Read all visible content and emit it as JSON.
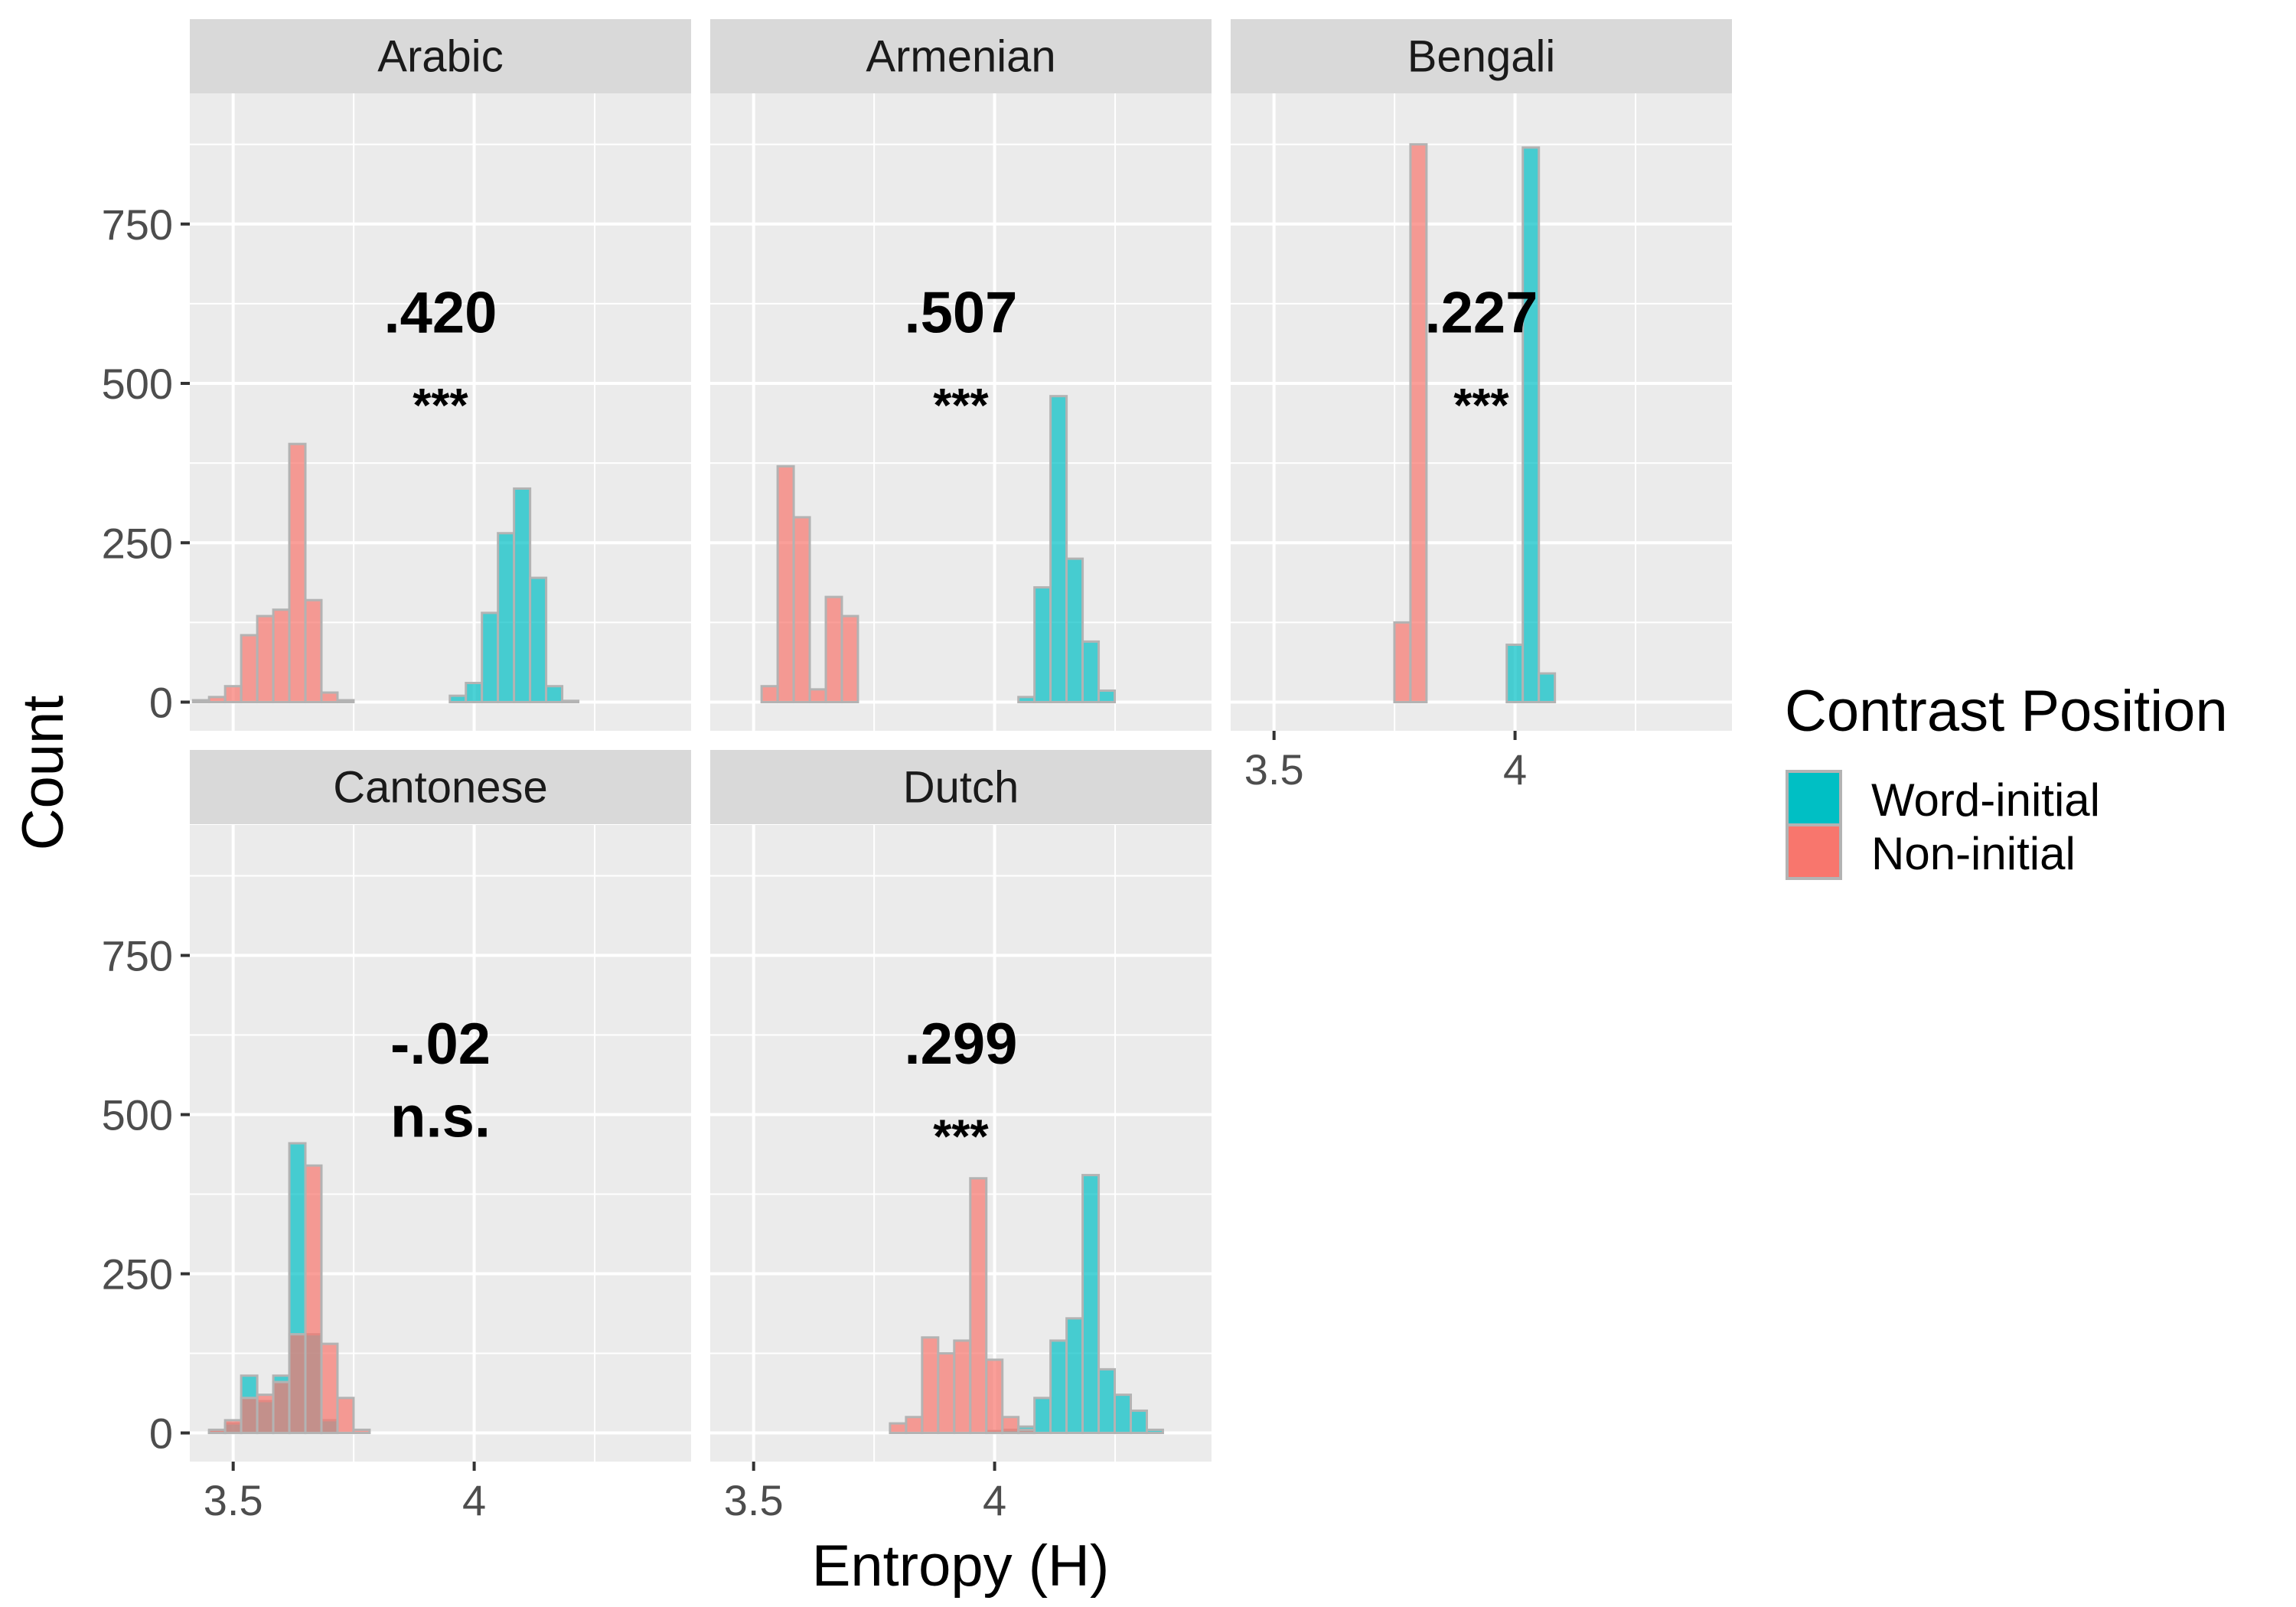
{
  "chart_data": {
    "type": "histogram",
    "facet_type": "facet_wrap",
    "xlabel": "Entropy (H)",
    "ylabel": "Count",
    "xlim": [
      3.41,
      4.45
    ],
    "ylim": [
      -45,
      955
    ],
    "x_ticks": [
      3.5,
      4
    ],
    "x_tick_labels": [
      "3.5",
      "4"
    ],
    "y_ticks": [
      0,
      250,
      500,
      750
    ],
    "y_tick_labels": [
      "0",
      "250",
      "500",
      "750"
    ],
    "minor_x": [
      3.75,
      4.25
    ],
    "minor_y": [
      125,
      375,
      625,
      875
    ],
    "bin_width": 0.0333,
    "bin_start": 3.4167,
    "n_bins": 28,
    "grid": true,
    "legend": {
      "title": "Contrast Position",
      "placement": "right",
      "entries": [
        {
          "label": "Word-initial",
          "color": "#00BFC4"
        },
        {
          "label": "Non-initial",
          "color": "#F8766D"
        }
      ]
    },
    "colors": {
      "word_initial": "#00BFC4",
      "non_initial": "#F8766D",
      "bar_outline": "#b3b3b3",
      "panel_bg": "#ebebeb",
      "strip_bg": "#d9d9d9",
      "grid": "#ffffff"
    },
    "panels": [
      {
        "strip": "Arabic",
        "annotation": ".420",
        "significance": "***",
        "series": [
          {
            "name": "Word-initial",
            "values": [
              0,
              0,
              0,
              0,
              0,
              0,
              0,
              0,
              0,
              0,
              0,
              0,
              0,
              0,
              0,
              0,
              10,
              30,
              140,
              265,
              335,
              195,
              25,
              2,
              0,
              0,
              0,
              0
            ]
          },
          {
            "name": "Non-initial",
            "values": [
              3,
              8,
              25,
              105,
              135,
              145,
              405,
              160,
              15,
              3,
              0,
              0,
              0,
              0,
              0,
              0,
              0,
              0,
              0,
              0,
              0,
              0,
              0,
              0,
              0,
              0,
              0,
              0
            ]
          }
        ]
      },
      {
        "strip": "Armenian",
        "annotation": ".507",
        "significance": "***",
        "series": [
          {
            "name": "Word-initial",
            "values": [
              0,
              0,
              0,
              0,
              0,
              0,
              0,
              0,
              0,
              0,
              0,
              0,
              0,
              0,
              0,
              0,
              0,
              0,
              0,
              8,
              180,
              480,
              225,
              95,
              18,
              0,
              0,
              0
            ]
          },
          {
            "name": "Non-initial",
            "values": [
              0,
              0,
              0,
              25,
              370,
              290,
              20,
              165,
              135,
              0,
              0,
              0,
              0,
              0,
              0,
              0,
              0,
              0,
              0,
              0,
              0,
              0,
              0,
              0,
              0,
              0,
              0,
              0
            ]
          }
        ]
      },
      {
        "strip": "Bengali",
        "annotation": ".227",
        "significance": "***",
        "series": [
          {
            "name": "Word-initial",
            "values": [
              0,
              0,
              0,
              0,
              0,
              0,
              0,
              0,
              0,
              0,
              0,
              0,
              0,
              0,
              0,
              0,
              0,
              90,
              870,
              45,
              0,
              0,
              0,
              0,
              0,
              0,
              0,
              0
            ]
          },
          {
            "name": "Non-initial",
            "values": [
              0,
              0,
              0,
              0,
              0,
              0,
              0,
              0,
              0,
              0,
              125,
              875,
              0,
              0,
              0,
              0,
              0,
              0,
              0,
              0,
              0,
              0,
              0,
              0,
              0,
              0,
              0,
              0
            ]
          }
        ]
      },
      {
        "strip": "Cantonese",
        "annotation": "-.02",
        "significance": "n.s.",
        "series": [
          {
            "name": "Word-initial",
            "values": [
              0,
              3,
              15,
              90,
              50,
              90,
              455,
              155,
              20,
              0,
              0,
              0,
              0,
              0,
              0,
              0,
              0,
              0,
              0,
              0,
              0,
              0,
              0,
              0,
              0,
              0,
              0,
              0
            ]
          },
          {
            "name": "Non-initial",
            "values": [
              0,
              5,
              20,
              55,
              60,
              80,
              155,
              420,
              140,
              55,
              5,
              0,
              0,
              0,
              0,
              0,
              0,
              0,
              0,
              0,
              0,
              0,
              0,
              0,
              0,
              0,
              0,
              0
            ]
          }
        ]
      },
      {
        "strip": "Dutch",
        "annotation": ".299",
        "significance": "***",
        "series": [
          {
            "name": "Word-initial",
            "values": [
              0,
              0,
              0,
              0,
              0,
              0,
              0,
              0,
              0,
              0,
              0,
              0,
              0,
              0,
              0,
              0,
              0,
              3,
              5,
              10,
              55,
              145,
              180,
              405,
              100,
              60,
              35,
              5
            ]
          },
          {
            "name": "Non-initial",
            "values": [
              0,
              0,
              0,
              0,
              0,
              0,
              0,
              0,
              0,
              0,
              0,
              15,
              25,
              150,
              125,
              145,
              400,
              115,
              25,
              5,
              0,
              0,
              0,
              0,
              0,
              0,
              0,
              0
            ]
          }
        ]
      }
    ]
  }
}
